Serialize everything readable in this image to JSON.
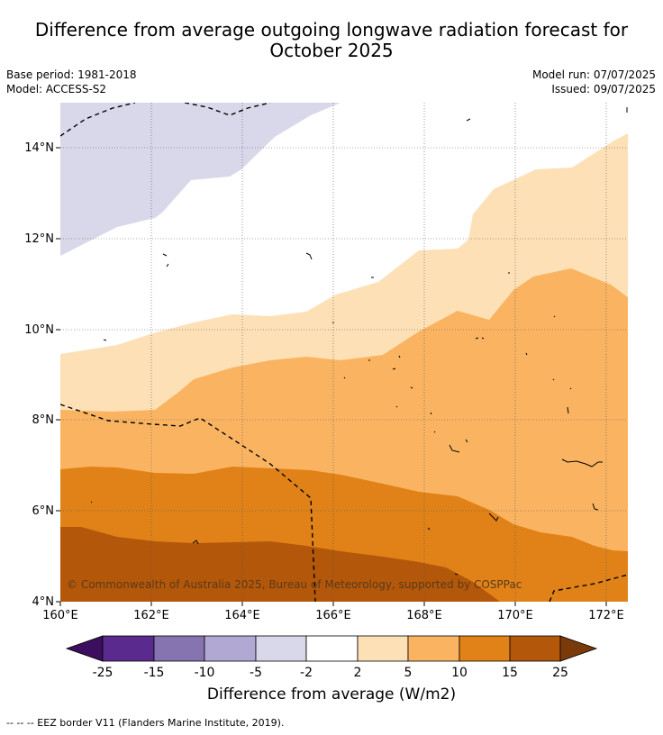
{
  "title": "Difference from average outgoing longwave radiation forecast for October 2025",
  "base_period": "Base period: 1981-2018",
  "model": "Model: ACCESS-S2",
  "model_run": "Model run: 07/07/2025",
  "issued": "Issued: 09/07/2025",
  "copyright": "© Commonwealth of Australia 2025, Bureau of Meteorology, supported by COSPPac",
  "colorbar": {
    "label": "Difference from average (W/m2)",
    "ticks": [
      "-25",
      "-15",
      "-10",
      "-5",
      "-2",
      "2",
      "5",
      "10",
      "15",
      "25"
    ],
    "colors": {
      "extend_low": "#3b0f5e",
      "lt_m15": "#5a2a8e",
      "m15_m10": "#8574b0",
      "m10_m5": "#b1a9d4",
      "m5_m2": "#d8d8ea",
      "m2_2": "#ffffff",
      "p2_5": "#fde0b6",
      "p5_10": "#fab461",
      "p10_15": "#e08218",
      "p15_25": "#b3570a",
      "extend_high": "#7a3a0a"
    }
  },
  "axes": {
    "lon_ticks": [
      "160°E",
      "162°E",
      "164°E",
      "166°E",
      "168°E",
      "170°E",
      "172°E"
    ],
    "lat_ticks": [
      "14°N",
      "12°N",
      "10°N",
      "8°N",
      "6°N",
      "4°N"
    ],
    "lon_range": [
      160,
      172.5
    ],
    "lat_range": [
      4,
      15
    ]
  },
  "legend_note": "--  --  -- EEZ border V11 (Flanders Marine Institute, 2019)."
}
